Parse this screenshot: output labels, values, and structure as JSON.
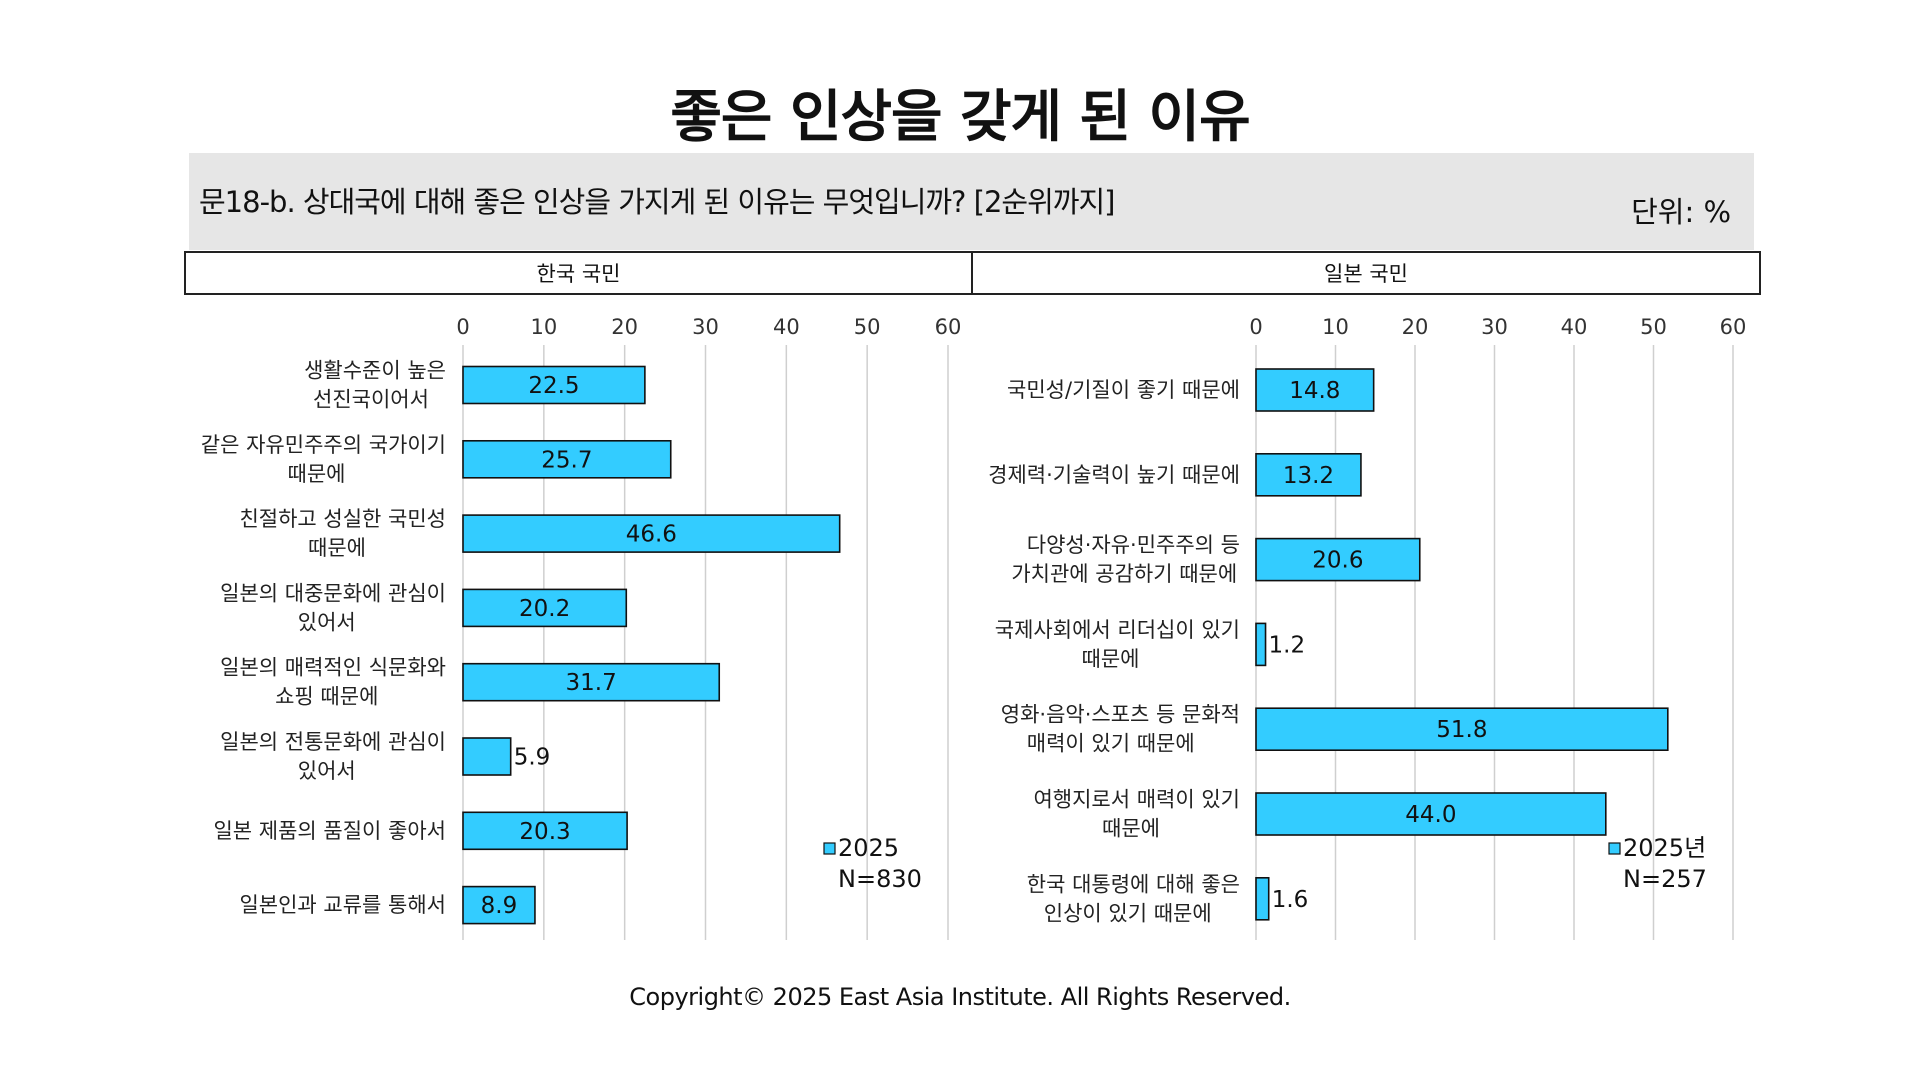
{
  "title": "좋은 인상을 갖게 된 이유",
  "question": "문18-b. 상대국에 대해 좋은 인상을 가지게 된 이유는 무엇입니까? [2순위까지]",
  "unit_label": "단위: %",
  "footer": "Copyright© 2025 East Asia Institute. All Rights Reserved.",
  "colors": {
    "bar": "#33ccff",
    "bar_stroke": "#111111",
    "grid": "#cfcfcf",
    "header_bg": "#e6e6e6"
  },
  "chart_data": [
    {
      "type": "bar",
      "orientation": "horizontal",
      "panel_header": "한국 국민",
      "categories": [
        [
          "생활수준이 높은",
          "선진국이어서"
        ],
        [
          "같은 자유민주주의 국가이기",
          "때문에"
        ],
        [
          "친절하고 성실한 국민성",
          "때문에"
        ],
        [
          "일본의 대중문화에 관심이",
          "있어서"
        ],
        [
          "일본의 매력적인 식문화와",
          "쇼핑 때문에"
        ],
        [
          "일본의 전통문화에 관심이",
          "있어서"
        ],
        [
          "일본 제품의 품질이 좋아서"
        ],
        [
          "일본인과 교류를 통해서"
        ]
      ],
      "series": [
        {
          "name": "2025",
          "values": [
            22.5,
            25.7,
            46.6,
            20.2,
            31.7,
            5.9,
            20.3,
            8.9
          ],
          "labels": [
            "22.5",
            "25.7",
            "46.6",
            "20.2",
            "31.7",
            "5.9",
            "20.3",
            "8.9"
          ]
        }
      ],
      "legend_note": "N=830",
      "xlim": [
        0,
        60
      ],
      "xticks": [
        "0",
        "10",
        "20",
        "30",
        "40",
        "50",
        "60"
      ],
      "grid": true,
      "legend_position": "bottom-right"
    },
    {
      "type": "bar",
      "orientation": "horizontal",
      "panel_header": "일본 국민",
      "categories": [
        [
          "국민성/기질이 좋기 때문에"
        ],
        [
          "경제력·기술력이 높기 때문에"
        ],
        [
          "다양성·자유·민주주의 등",
          "가치관에 공감하기 때문에"
        ],
        [
          "국제사회에서 리더십이 있기",
          "때문에"
        ],
        [
          "영화·음악·스포츠 등 문화적",
          "매력이 있기 때문에"
        ],
        [
          "여행지로서 매력이 있기",
          "때문에"
        ],
        [
          "한국 대통령에 대해 좋은",
          "인상이 있기 때문에"
        ]
      ],
      "series": [
        {
          "name": "2025년",
          "values": [
            14.8,
            13.2,
            20.6,
            1.2,
            51.8,
            44.0,
            1.6
          ],
          "labels": [
            "14.8",
            "13.2",
            "20.6",
            "1.2",
            "51.8",
            "44.0",
            "1.6"
          ]
        }
      ],
      "legend_note": "N=257",
      "xlim": [
        0,
        60
      ],
      "xticks": [
        "0",
        "10",
        "20",
        "30",
        "40",
        "50",
        "60"
      ],
      "grid": true,
      "legend_position": "bottom-right"
    }
  ]
}
